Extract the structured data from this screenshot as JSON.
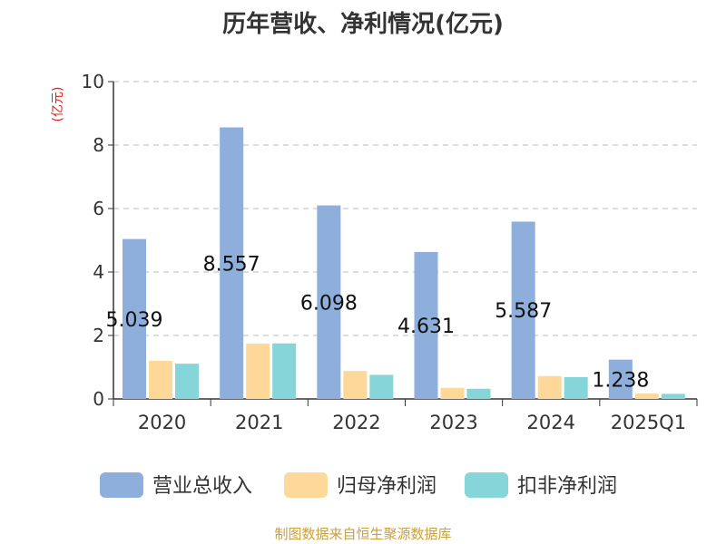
{
  "chart_data": {
    "type": "bar",
    "title": "历年营收、净利情况(亿元)",
    "ylabel": "(亿元)",
    "xlabel": "",
    "ylim": [
      0,
      10
    ],
    "yticks": [
      0,
      2,
      4,
      6,
      8,
      10
    ],
    "grid": true,
    "legend_position": "bottom",
    "categories": [
      "2020",
      "2021",
      "2022",
      "2023",
      "2024",
      "2025Q1"
    ],
    "series": [
      {
        "name": "营业总收入",
        "color": "#8eaedc",
        "values": [
          5.039,
          8.557,
          6.098,
          4.631,
          5.587,
          1.238
        ],
        "labels": [
          "5.039",
          "8.557",
          "6.098",
          "4.631",
          "5.587",
          "1.238"
        ]
      },
      {
        "name": "归母净利润",
        "color": "#fdd898",
        "values": [
          1.2,
          1.74,
          0.88,
          0.35,
          0.72,
          0.17
        ]
      },
      {
        "name": "扣非净利润",
        "color": "#86d5d8",
        "values": [
          1.11,
          1.75,
          0.76,
          0.32,
          0.69,
          0.16
        ]
      }
    ]
  },
  "source": "制图数据来自恒生聚源数据库"
}
